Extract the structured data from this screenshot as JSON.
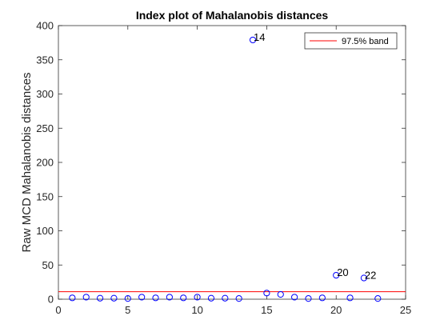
{
  "chart_data": {
    "type": "scatter",
    "title": "Index plot of Mahalanobis distances",
    "xlabel": "",
    "ylabel": "Raw MCD Mahalanobis distances",
    "xlim": [
      0,
      25
    ],
    "ylim": [
      0,
      400
    ],
    "xticks": [
      0,
      5,
      10,
      15,
      20,
      25
    ],
    "yticks": [
      0,
      50,
      100,
      150,
      200,
      250,
      300,
      350,
      400
    ],
    "grid": false,
    "legend_position": "top-right",
    "series": [
      {
        "marker": "open-circle",
        "color": "#0000ff",
        "x": [
          1,
          2,
          3,
          4,
          5,
          6,
          7,
          8,
          9,
          10,
          11,
          12,
          13,
          14,
          15,
          16,
          17,
          18,
          19,
          20,
          21,
          22,
          23
        ],
        "y": [
          2,
          3,
          1.5,
          1.5,
          1,
          3,
          2,
          3,
          2,
          3,
          1.5,
          1.5,
          1,
          379,
          9,
          7,
          3,
          1,
          2,
          35,
          2,
          31,
          1
        ]
      }
    ],
    "reference_lines": [
      {
        "name": "97.5% band",
        "y": 11,
        "color": "#ff0000"
      }
    ],
    "annotations": [
      {
        "text": "14",
        "x": 14,
        "y": 379
      },
      {
        "text": "20",
        "x": 20,
        "y": 35
      },
      {
        "text": "22",
        "x": 22,
        "y": 31
      }
    ]
  }
}
